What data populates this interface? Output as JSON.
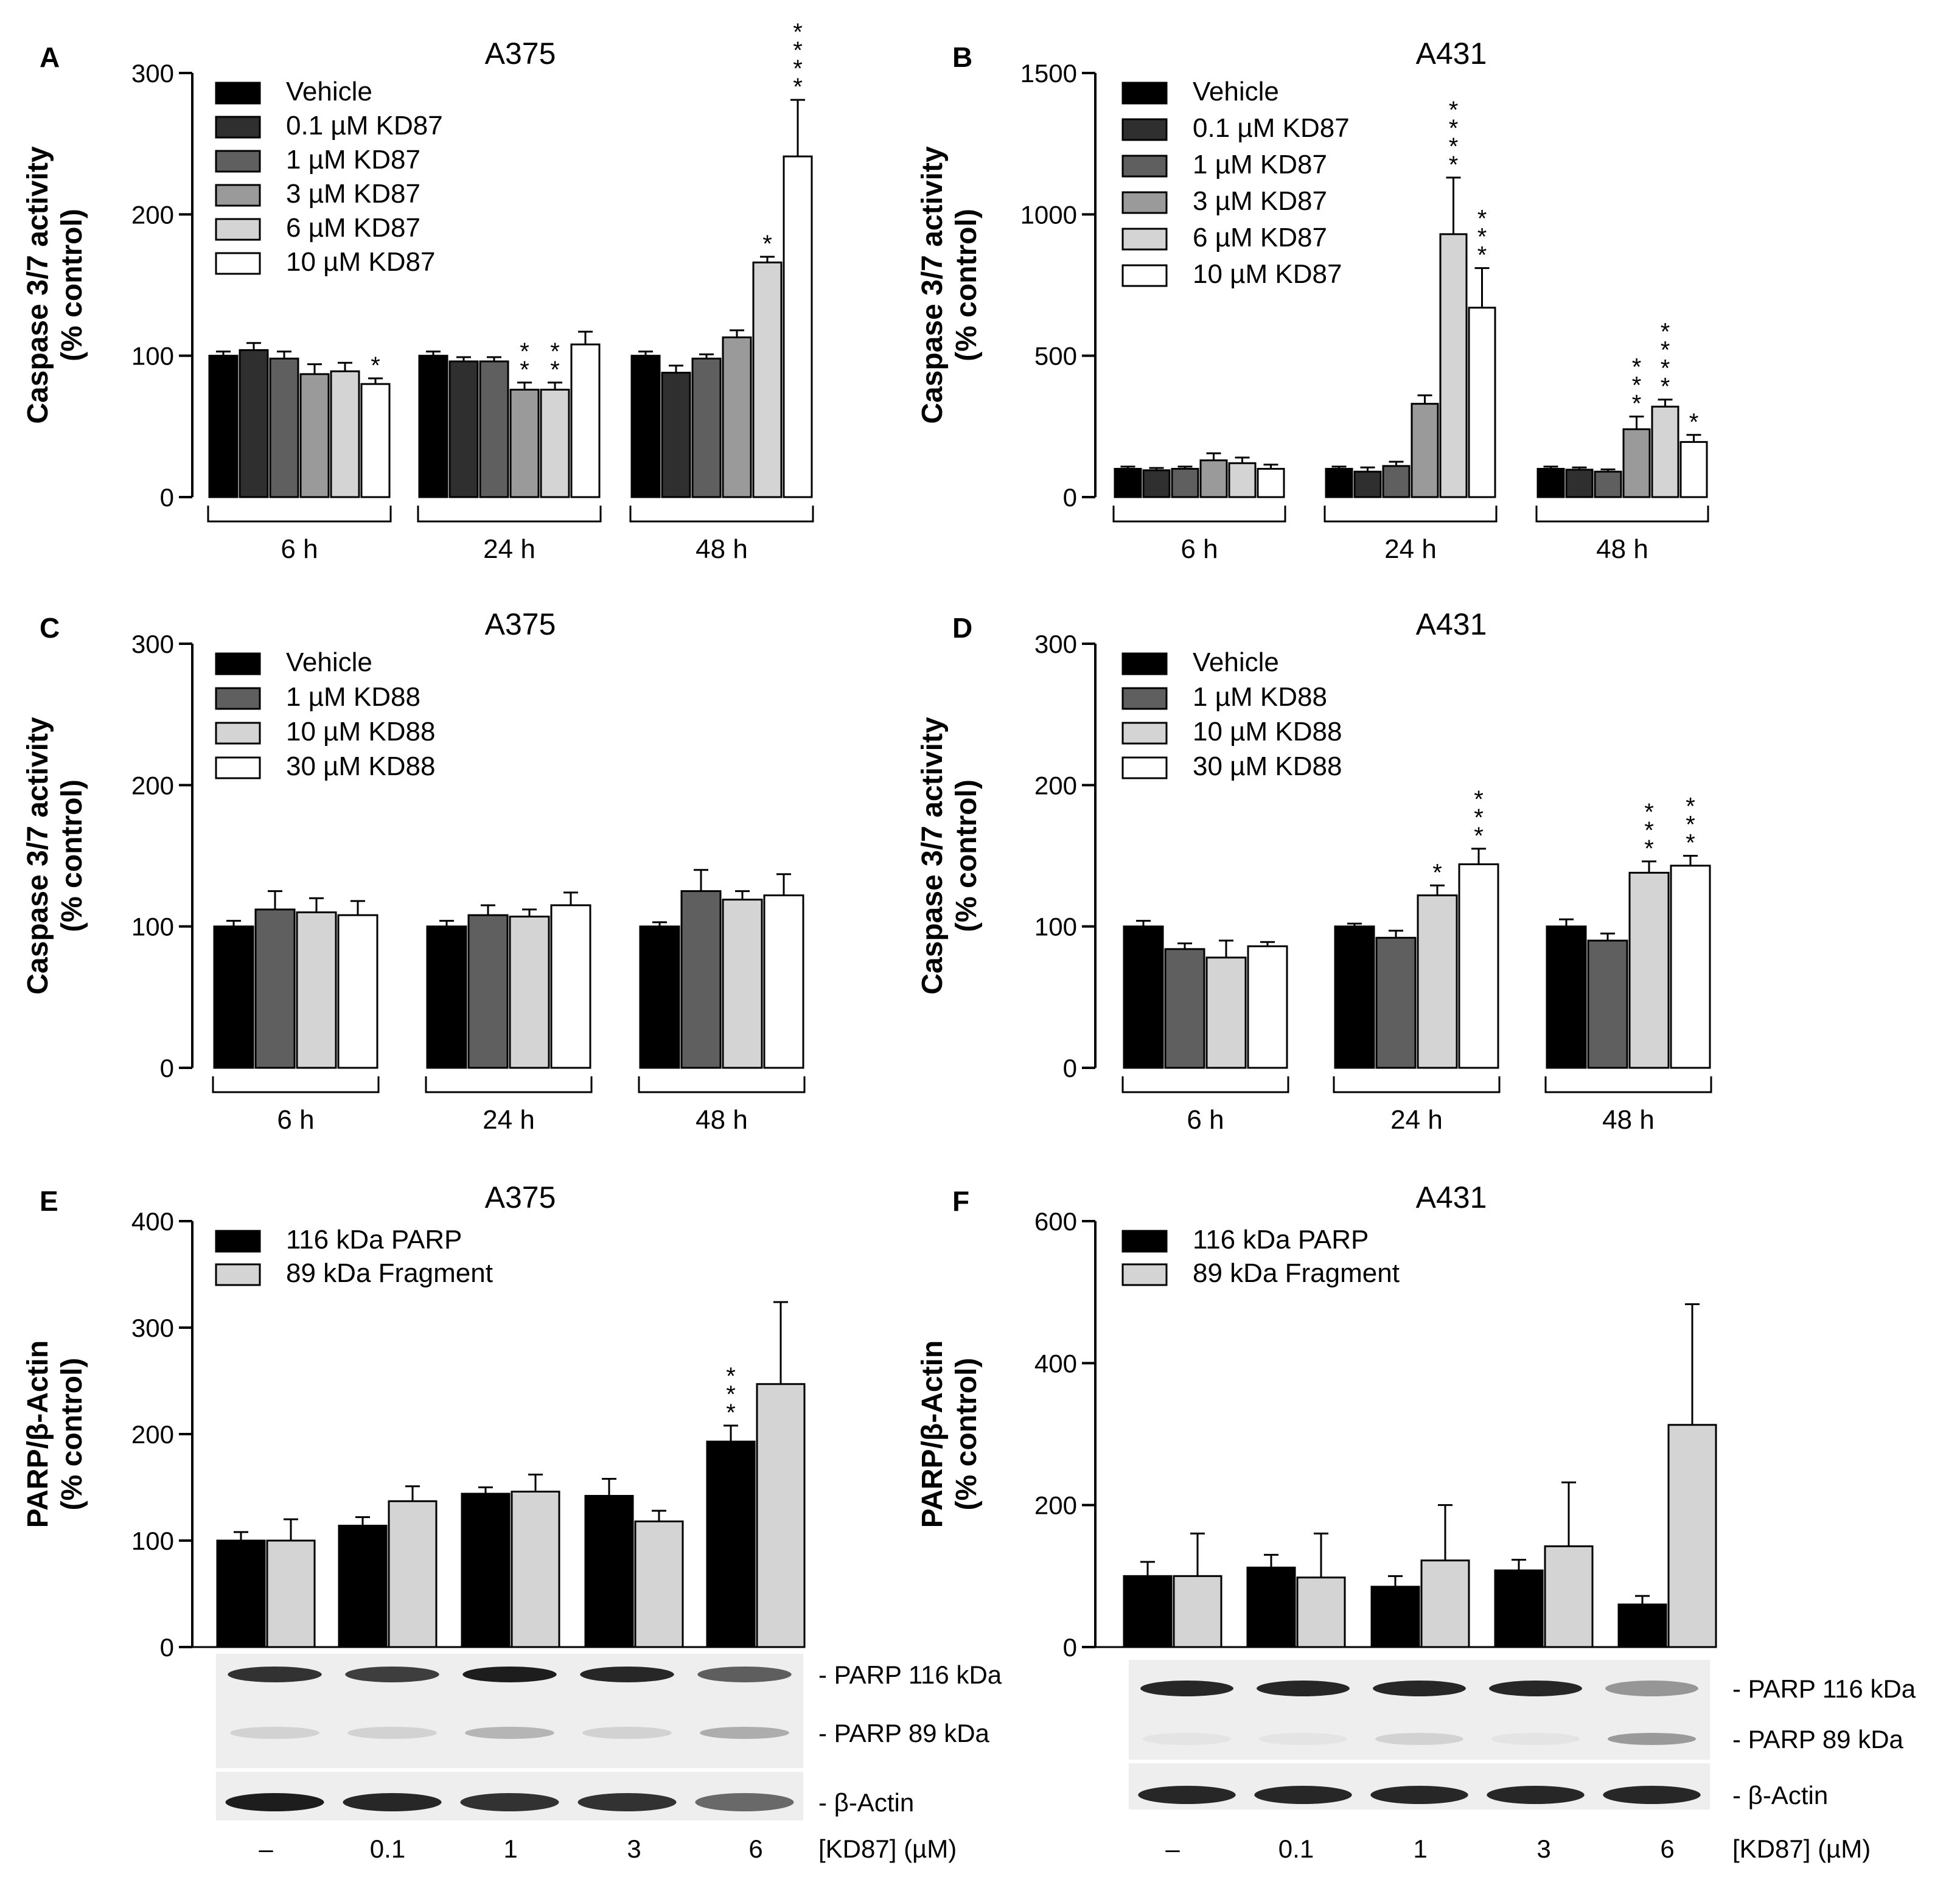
{
  "chart_data": [
    {
      "id": "A",
      "type": "bar",
      "letter": "A",
      "title": "A375",
      "ylabel": [
        "Caspase 3/7 activity",
        "(% control)"
      ],
      "ylim": [
        0,
        300
      ],
      "yticks": [
        "0",
        "100",
        "200",
        "300"
      ],
      "legend": [
        {
          "label": "Vehicle",
          "color": "#000000"
        },
        {
          "label": "0.1 µM KD87",
          "color": "#2f2f2f"
        },
        {
          "label": "1 µM KD87",
          "color": "#5f5f5f"
        },
        {
          "label": "3 µM KD87",
          "color": "#9a9a9a"
        },
        {
          "label": "6 µM KD87",
          "color": "#d4d4d4"
        },
        {
          "label": "10 µM KD87",
          "color": "#ffffff"
        }
      ],
      "groups": [
        "6 h",
        "24 h",
        "48 h"
      ],
      "values": [
        [
          100,
          104,
          98,
          87,
          89,
          80
        ],
        [
          100,
          96,
          96,
          76,
          76,
          108
        ],
        [
          100,
          88,
          98,
          113,
          166,
          241
        ]
      ],
      "errors": [
        [
          3,
          5,
          5,
          7,
          6,
          4
        ],
        [
          3,
          3,
          3,
          5,
          5,
          9
        ],
        [
          3,
          5,
          3,
          5,
          4,
          40
        ]
      ],
      "stars": [
        [
          "",
          "",
          "",
          "",
          "",
          "*"
        ],
        [
          "",
          "",
          "",
          "**",
          "**",
          ""
        ],
        [
          "",
          "",
          "",
          "",
          "*",
          "****"
        ]
      ]
    },
    {
      "id": "B",
      "type": "bar",
      "letter": "B",
      "title": "A431",
      "ylabel": [
        "Caspase 3/7 activity",
        "(% control)"
      ],
      "ylim": [
        0,
        1500
      ],
      "yticks": [
        "0",
        "500",
        "1000",
        "1500"
      ],
      "legend": [
        {
          "label": "Vehicle",
          "color": "#000000"
        },
        {
          "label": "0.1 µM KD87",
          "color": "#2f2f2f"
        },
        {
          "label": "1 µM KD87",
          "color": "#5f5f5f"
        },
        {
          "label": "3 µM KD87",
          "color": "#9a9a9a"
        },
        {
          "label": "6 µM KD87",
          "color": "#d4d4d4"
        },
        {
          "label": "10 µM KD87",
          "color": "#ffffff"
        }
      ],
      "groups": [
        "6 h",
        "24 h",
        "48 h"
      ],
      "values": [
        [
          100,
          95,
          100,
          130,
          120,
          100
        ],
        [
          100,
          90,
          110,
          330,
          930,
          670
        ],
        [
          100,
          97,
          90,
          240,
          320,
          195
        ]
      ],
      "errors": [
        [
          8,
          8,
          8,
          25,
          20,
          15
        ],
        [
          8,
          15,
          15,
          30,
          200,
          140
        ],
        [
          8,
          8,
          8,
          45,
          25,
          25
        ]
      ],
      "stars": [
        [
          "",
          "",
          "",
          "",
          "",
          ""
        ],
        [
          "",
          "",
          "",
          "",
          "****",
          "***"
        ],
        [
          "",
          "",
          "",
          "***",
          "****",
          "*"
        ]
      ]
    },
    {
      "id": "C",
      "type": "bar",
      "letter": "C",
      "title": "A375",
      "ylabel": [
        "Caspase 3/7 activity",
        "(% control)"
      ],
      "ylim": [
        0,
        300
      ],
      "yticks": [
        "0",
        "100",
        "200",
        "300"
      ],
      "legend": [
        {
          "label": "Vehicle",
          "color": "#000000"
        },
        {
          "label": "1 µM KD88",
          "color": "#5f5f5f"
        },
        {
          "label": "10 µM KD88",
          "color": "#d4d4d4"
        },
        {
          "label": "30 µM KD88",
          "color": "#ffffff"
        }
      ],
      "groups": [
        "6 h",
        "24 h",
        "48 h"
      ],
      "values": [
        [
          100,
          112,
          110,
          108
        ],
        [
          100,
          108,
          107,
          115
        ],
        [
          100,
          125,
          119,
          122
        ]
      ],
      "errors": [
        [
          4,
          13,
          10,
          10
        ],
        [
          4,
          7,
          5,
          9
        ],
        [
          3,
          15,
          6,
          15
        ]
      ],
      "stars": [
        [
          "",
          "",
          "",
          ""
        ],
        [
          "",
          "",
          "",
          ""
        ],
        [
          "",
          "",
          "",
          ""
        ]
      ]
    },
    {
      "id": "D",
      "type": "bar",
      "letter": "D",
      "title": "A431",
      "ylabel": [
        "Caspase 3/7 activity",
        "(% control)"
      ],
      "ylim": [
        0,
        300
      ],
      "yticks": [
        "0",
        "100",
        "200",
        "300"
      ],
      "legend": [
        {
          "label": "Vehicle",
          "color": "#000000"
        },
        {
          "label": "1 µM KD88",
          "color": "#5f5f5f"
        },
        {
          "label": "10 µM KD88",
          "color": "#d4d4d4"
        },
        {
          "label": "30 µM KD88",
          "color": "#ffffff"
        }
      ],
      "groups": [
        "6 h",
        "24 h",
        "48 h"
      ],
      "values": [
        [
          100,
          84,
          78,
          86
        ],
        [
          100,
          92,
          122,
          144
        ],
        [
          100,
          90,
          138,
          143
        ]
      ],
      "errors": [
        [
          4,
          4,
          12,
          3
        ],
        [
          2,
          5,
          7,
          11
        ],
        [
          5,
          5,
          8,
          7
        ]
      ],
      "stars": [
        [
          "",
          "",
          "",
          ""
        ],
        [
          "",
          "",
          "*",
          "***"
        ],
        [
          "",
          "",
          "***",
          "***"
        ]
      ]
    },
    {
      "id": "E",
      "type": "bar",
      "letter": "E",
      "title": "A375",
      "ylabel": [
        "PARP/β-Actin",
        "(% control)"
      ],
      "ylim": [
        0,
        400
      ],
      "yticks": [
        "0",
        "100",
        "200",
        "300",
        "400"
      ],
      "legend": [
        {
          "label": "116 kDa PARP",
          "color": "#000000"
        },
        {
          "label": "89 kDa Fragment",
          "color": "#d4d4d4"
        }
      ],
      "groups": [
        "–",
        "0.1",
        "1",
        "3",
        "6"
      ],
      "values": [
        [
          100,
          100
        ],
        [
          114,
          137
        ],
        [
          144,
          146
        ],
        [
          142,
          118
        ],
        [
          193,
          247
        ]
      ],
      "errors": [
        [
          8,
          20
        ],
        [
          8,
          14
        ],
        [
          6,
          16
        ],
        [
          16,
          10
        ],
        [
          15,
          77
        ]
      ],
      "stars": [
        [
          "",
          ""
        ],
        [
          "",
          ""
        ],
        [
          "",
          ""
        ],
        [
          "",
          ""
        ],
        [
          "***",
          ""
        ]
      ],
      "blot_labels": [
        "- PARP 116 kDa",
        "- PARP 89 kDa",
        "- β-Actin"
      ],
      "xlabel": "[KD87] (µM)"
    },
    {
      "id": "F",
      "type": "bar",
      "letter": "F",
      "title": "A431",
      "ylabel": [
        "PARP/β-Actin",
        "(% control)"
      ],
      "ylim": [
        0,
        600
      ],
      "yticks": [
        "0",
        "200",
        "400",
        "600"
      ],
      "legend": [
        {
          "label": "116 kDa PARP",
          "color": "#000000"
        },
        {
          "label": "89 kDa Fragment",
          "color": "#d4d4d4"
        }
      ],
      "groups": [
        "–",
        "0.1",
        "1",
        "3",
        "6"
      ],
      "values": [
        [
          100,
          100
        ],
        [
          112,
          98
        ],
        [
          85,
          122
        ],
        [
          108,
          142
        ],
        [
          60,
          313
        ]
      ],
      "errors": [
        [
          20,
          60
        ],
        [
          18,
          62
        ],
        [
          15,
          78
        ],
        [
          15,
          90
        ],
        [
          12,
          170
        ]
      ],
      "stars": [
        [
          "",
          ""
        ],
        [
          "",
          ""
        ],
        [
          "",
          ""
        ],
        [
          "",
          ""
        ],
        [
          "",
          ""
        ]
      ],
      "blot_labels": [
        "- PARP 116 kDa",
        "- PARP 89 kDa",
        "- β-Actin"
      ],
      "xlabel": "[KD87] (µM)"
    }
  ]
}
